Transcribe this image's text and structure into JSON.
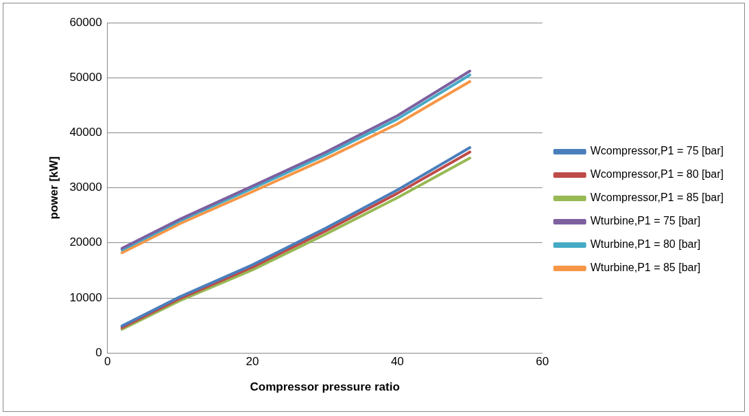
{
  "chart_data": {
    "type": "line",
    "xlabel": "Compressor pressure ratio",
    "ylabel": "power [kW]",
    "xlim": [
      0,
      60
    ],
    "xticks": [
      0,
      20,
      40,
      60
    ],
    "ylim": [
      0,
      60000
    ],
    "yticks": [
      0,
      10000,
      20000,
      30000,
      40000,
      50000,
      60000
    ],
    "grid": "y",
    "legend": "right",
    "marker": "none",
    "line_style": "solid",
    "x": [
      2,
      10,
      20,
      30,
      40,
      50
    ],
    "series": [
      {
        "name": "Wcompressor,P1 = 75 [bar]",
        "color": "#4a7ebb",
        "values": [
          4900,
          10200,
          16000,
          22600,
          29600,
          37300
        ]
      },
      {
        "name": "Wcompressor,P1 = 80 [bar]",
        "color": "#be4b48",
        "values": [
          4600,
          9900,
          15600,
          22100,
          29000,
          36500
        ]
      },
      {
        "name": "Wcompressor,P1 = 85 [bar]",
        "color": "#98b954",
        "values": [
          4300,
          9500,
          15100,
          21500,
          28200,
          35400
        ]
      },
      {
        "name": "Wturbine,P1 = 75 [bar]",
        "color": "#7d60a0",
        "values": [
          19000,
          24300,
          30300,
          36400,
          43100,
          51200
        ]
      },
      {
        "name": "Wturbine,P1 = 80 [bar]",
        "color": "#46aac5",
        "values": [
          18700,
          24000,
          29900,
          35900,
          42500,
          50500
        ]
      },
      {
        "name": "Wturbine,P1 = 85 [bar]",
        "color": "#f79646",
        "values": [
          18200,
          23500,
          29300,
          35200,
          41600,
          49300
        ]
      }
    ]
  }
}
